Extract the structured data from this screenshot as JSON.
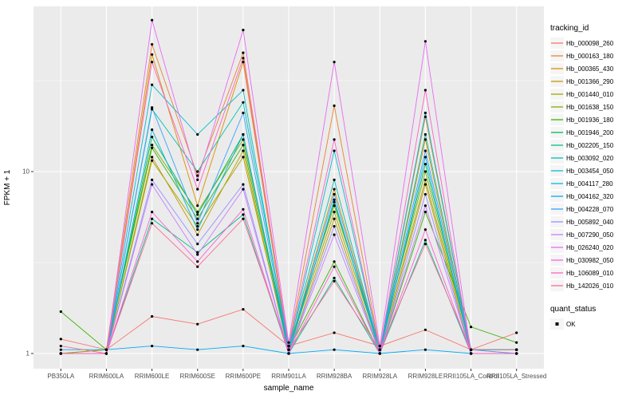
{
  "figure": {
    "background": "#FFFFFF",
    "panel_background": "#EBEBEB",
    "grid_color": "#FFFFFF",
    "tick_text_color": "#4D4D4D",
    "axis_title_color": "#000000",
    "point_color": "#000000"
  },
  "chart_data": {
    "type": "line",
    "title": "",
    "xlabel": "sample_name",
    "ylabel": "FPKM + 1",
    "y_scale": "log10",
    "y_ticks": [
      1,
      10
    ],
    "y_minor_ticks": [
      3.1623,
      31.623
    ],
    "ylim": [
      0.85,
      80
    ],
    "grid": true,
    "categories": [
      "PB350LA",
      "RRIM600LA",
      "RRIM600LE",
      "RRIM600SE",
      "RRIM600PE",
      "RRIM901LA",
      "RRIM928BA",
      "RRIM928LA",
      "RRIM928LE",
      "RRII105LA_Control",
      "RRII105LA_Stressed"
    ],
    "series": [
      {
        "name": "Hb_000098_260",
        "color": "#F8766D",
        "values": [
          1.2,
          1.05,
          1.6,
          1.45,
          1.75,
          1.1,
          1.3,
          1.1,
          1.35,
          1.05,
          1.3
        ]
      },
      {
        "name": "Hb_000163_180",
        "color": "#EA8331",
        "values": [
          1.0,
          1.05,
          50.0,
          9.5,
          45.0,
          1.1,
          23.0,
          1.05,
          20.0,
          1.05,
          1.0
        ]
      },
      {
        "name": "Hb_000365_430",
        "color": "#D89000",
        "values": [
          1.0,
          1.0,
          44.0,
          6.5,
          40.0,
          1.05,
          8.0,
          1.05,
          15.0,
          1.0,
          1.0
        ]
      },
      {
        "name": "Hb_001366_290",
        "color": "#C09B00",
        "values": [
          1.0,
          1.0,
          12.0,
          4.5,
          13.0,
          1.0,
          5.5,
          1.0,
          8.5,
          1.0,
          1.0
        ]
      },
      {
        "name": "Hb_001440_010",
        "color": "#A3A500",
        "values": [
          1.0,
          1.0,
          11.5,
          5.0,
          12.0,
          1.05,
          6.0,
          1.05,
          9.0,
          1.05,
          1.05
        ]
      },
      {
        "name": "Hb_001638_150",
        "color": "#7CAE00",
        "values": [
          1.0,
          1.05,
          14.0,
          6.0,
          15.0,
          1.1,
          6.5,
          1.1,
          10.0,
          1.05,
          1.05
        ]
      },
      {
        "name": "Hb_001936_180",
        "color": "#39B600",
        "values": [
          1.7,
          1.05,
          13.5,
          5.5,
          14.0,
          1.05,
          3.2,
          1.0,
          6.0,
          1.4,
          1.15
        ]
      },
      {
        "name": "Hb_001946_200",
        "color": "#00BB4E",
        "values": [
          1.0,
          1.0,
          15.5,
          5.8,
          16.0,
          1.05,
          6.8,
          1.05,
          11.0,
          1.05,
          1.05
        ]
      },
      {
        "name": "Hb_002205_150",
        "color": "#00C087",
        "values": [
          1.0,
          1.0,
          5.5,
          3.6,
          5.8,
          1.0,
          2.6,
          1.0,
          4.2,
          1.0,
          1.0
        ]
      },
      {
        "name": "Hb_003092_020",
        "color": "#00C0B2",
        "values": [
          1.0,
          1.0,
          22.0,
          10.0,
          24.0,
          1.1,
          9.0,
          1.05,
          16.0,
          1.05,
          1.05
        ]
      },
      {
        "name": "Hb_003454_050",
        "color": "#00BFD3",
        "values": [
          1.0,
          1.0,
          30.0,
          16.0,
          28.0,
          1.05,
          13.0,
          1.05,
          21.0,
          1.05,
          1.05
        ]
      },
      {
        "name": "Hb_004117_280",
        "color": "#00B8E7",
        "values": [
          1.0,
          1.0,
          17.0,
          4.8,
          16.0,
          1.0,
          7.0,
          1.0,
          12.0,
          1.0,
          1.0
        ]
      },
      {
        "name": "Hb_004162_320",
        "color": "#00ACF4",
        "values": [
          1.05,
          1.05,
          1.1,
          1.05,
          1.1,
          1.0,
          1.05,
          1.0,
          1.05,
          1.0,
          1.0
        ]
      },
      {
        "name": "Hb_004228_070",
        "color": "#35A2FF",
        "values": [
          1.0,
          1.0,
          22.5,
          5.2,
          21.0,
          1.05,
          7.5,
          1.05,
          13.0,
          1.05,
          1.0
        ]
      },
      {
        "name": "Hb_005892_040",
        "color": "#9590FF",
        "values": [
          1.0,
          1.0,
          9.0,
          4.0,
          8.5,
          1.0,
          5.0,
          1.0,
          7.5,
          1.0,
          1.0
        ]
      },
      {
        "name": "Hb_007290_050",
        "color": "#C77CFF",
        "values": [
          1.0,
          1.0,
          8.5,
          3.5,
          8.0,
          1.0,
          4.5,
          1.0,
          6.5,
          1.0,
          1.0
        ]
      },
      {
        "name": "Hb_026240_020",
        "color": "#E76BF3",
        "values": [
          1.0,
          1.0,
          68.0,
          9.0,
          60.0,
          1.15,
          40.0,
          1.1,
          52.0,
          1.0,
          1.0
        ]
      },
      {
        "name": "Hb_030982_050",
        "color": "#FA62DB",
        "values": [
          1.0,
          1.0,
          6.0,
          3.2,
          6.2,
          1.0,
          3.0,
          1.0,
          4.8,
          1.0,
          1.0
        ]
      },
      {
        "name": "Hb_106089_010",
        "color": "#FF61C2",
        "values": [
          1.0,
          1.0,
          40.0,
          8.0,
          42.0,
          1.1,
          15.0,
          1.05,
          28.0,
          1.0,
          1.0
        ]
      },
      {
        "name": "Hb_142026_010",
        "color": "#FF6A98",
        "values": [
          1.1,
          1.0,
          5.2,
          3.0,
          5.5,
          1.05,
          2.5,
          1.05,
          4.0,
          1.05,
          1.05
        ]
      }
    ],
    "legend": {
      "position": "right",
      "color_title": "tracking_id",
      "shape_title": "quant_status",
      "shape_items": [
        {
          "label": "OK",
          "shape": "point",
          "color": "#000000"
        }
      ]
    }
  }
}
